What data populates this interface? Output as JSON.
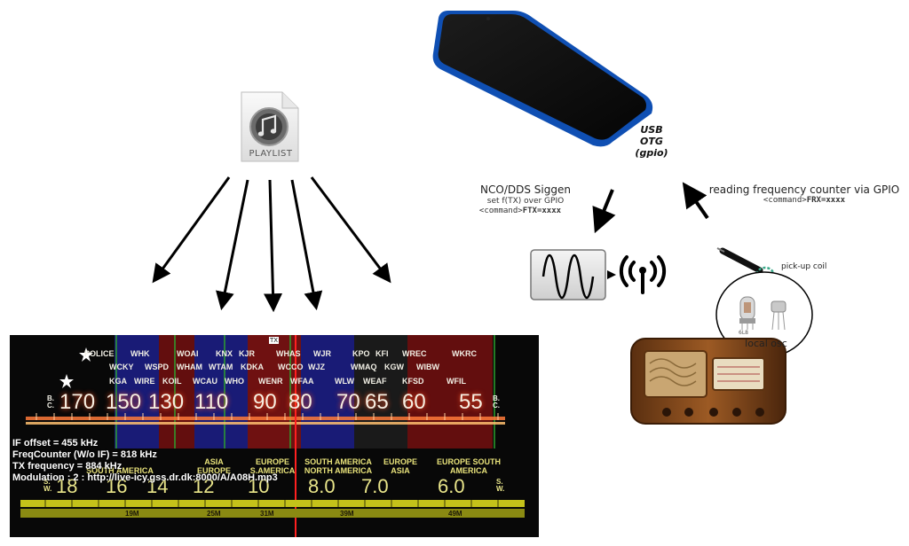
{
  "playlist": {
    "label": "PLAYLIST"
  },
  "phone": {
    "label_line1": "USB",
    "label_line2": "OTG",
    "label_line3": "(gpio)"
  },
  "nco": {
    "title": "NCO/DDS Siggen",
    "subtitle": "set f(TX) over GPIO",
    "command_prefix": "<command>",
    "command_value": "FTX=xxxx"
  },
  "freq_counter": {
    "title": "reading frequency counter via GPIO",
    "command_prefix": "<command>",
    "command_value": "FRX=xxxx"
  },
  "pickup": {
    "label": "pick-up coil"
  },
  "local_osc": {
    "label": "local osc",
    "tube_label": "6L8"
  },
  "dial": {
    "pointer_label": "TX",
    "status": {
      "if_offset": "IF offset = 455 kHz",
      "freq_counter": "FreqCounter (W/o IF) = 818 kHz",
      "tx_frequency": "TX frequency = 884 kHz",
      "modulation": "Modulation : 2 : http://live-icy.gss.dr.dk:8000/A/A08H.mp3"
    },
    "stations": [
      {
        "name": "POLICE"
      },
      {
        "name": "WHK"
      },
      {
        "name": "WOAI"
      },
      {
        "name": "KNX"
      },
      {
        "name": "KJR"
      },
      {
        "name": "WHAS"
      },
      {
        "name": "WJR"
      },
      {
        "name": "KPO"
      },
      {
        "name": "KFI"
      },
      {
        "name": "WREC"
      },
      {
        "name": "WKRC"
      },
      {
        "name": "WCKY"
      },
      {
        "name": "WSPD"
      },
      {
        "name": "WHAM"
      },
      {
        "name": "WTAM"
      },
      {
        "name": "KDKA"
      },
      {
        "name": "WCCO"
      },
      {
        "name": "WJZ"
      },
      {
        "name": "WMAQ"
      },
      {
        "name": "KGW"
      },
      {
        "name": "WIBW"
      },
      {
        "name": "KGA"
      },
      {
        "name": "WIRE"
      },
      {
        "name": "KOIL"
      },
      {
        "name": "WCAU"
      },
      {
        "name": "WHO"
      },
      {
        "name": "WENR"
      },
      {
        "name": "WFAA"
      },
      {
        "name": "WLW"
      },
      {
        "name": "WEAF"
      },
      {
        "name": "KFSD"
      },
      {
        "name": "WFIL"
      }
    ],
    "mw_numbers": [
      "170",
      "150",
      "130",
      "110",
      "90",
      "80",
      "70",
      "65",
      "60",
      "55"
    ],
    "mw_side_label": "B.C.",
    "sw_numbers": [
      "18",
      "16",
      "14",
      "12",
      "10",
      "8.0",
      "7.0",
      "6.0"
    ],
    "sw_side_label": "S.W.",
    "regions": [
      {
        "text": "SOUTH AMERICA"
      },
      {
        "text": "ASIA EUROPE"
      },
      {
        "text": "EUROPE S.AMERICA"
      },
      {
        "text": "SOUTH AMERICA NORTH AMERICA"
      },
      {
        "text": "EUROPE ASIA"
      },
      {
        "text": "EUROPE SOUTH AMERICA"
      }
    ],
    "meter_bands": [
      "19M",
      "25M",
      "31M",
      "39M",
      "49M"
    ]
  }
}
